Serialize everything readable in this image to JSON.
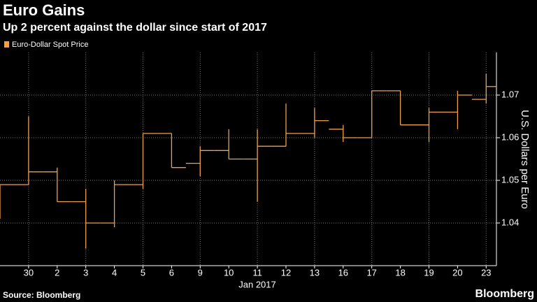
{
  "chart_data": {
    "type": "ohlc",
    "title": "Euro Gains",
    "subtitle": "Up 2 percent against the dollar since start of 2017",
    "y_label": "U.S. Dollars per Euro",
    "x_label": "Jan 2017",
    "source": "Source: Bloomberg",
    "brand": "Bloomberg",
    "categories": [
      null,
      "30",
      "2",
      "3",
      "4",
      "5",
      "6",
      "9",
      "10",
      "11",
      "12",
      "13",
      "16",
      "17",
      "18",
      "19",
      "20",
      "23"
    ],
    "series": [
      {
        "name": "Euro-Dollar Spot Price",
        "color": "#f0a04b",
        "open": [
          1.049,
          1.049,
          1.052,
          1.045,
          1.04,
          1.049,
          1.061,
          1.054,
          1.057,
          1.055,
          1.058,
          1.061,
          1.062,
          1.06,
          1.071,
          1.063,
          1.066,
          1.069
        ],
        "high": [
          1.049,
          1.065,
          1.053,
          1.048,
          1.05,
          1.061,
          1.061,
          1.058,
          1.062,
          1.062,
          1.068,
          1.067,
          1.063,
          1.071,
          1.071,
          1.067,
          1.071,
          1.075
        ],
        "low": [
          1.041,
          1.049,
          1.045,
          1.034,
          1.039,
          1.048,
          1.053,
          1.051,
          1.055,
          1.045,
          1.058,
          1.06,
          1.059,
          1.06,
          1.063,
          1.059,
          1.062,
          1.068
        ],
        "close": [
          1.049,
          1.052,
          1.045,
          1.04,
          1.049,
          1.061,
          1.053,
          1.057,
          1.055,
          1.058,
          1.061,
          1.064,
          1.06,
          1.071,
          1.063,
          1.066,
          1.07,
          1.072
        ]
      }
    ],
    "ylim": [
      1.03,
      1.08
    ],
    "yticks": [
      1.04,
      1.05,
      1.06,
      1.07
    ],
    "grid": true
  }
}
